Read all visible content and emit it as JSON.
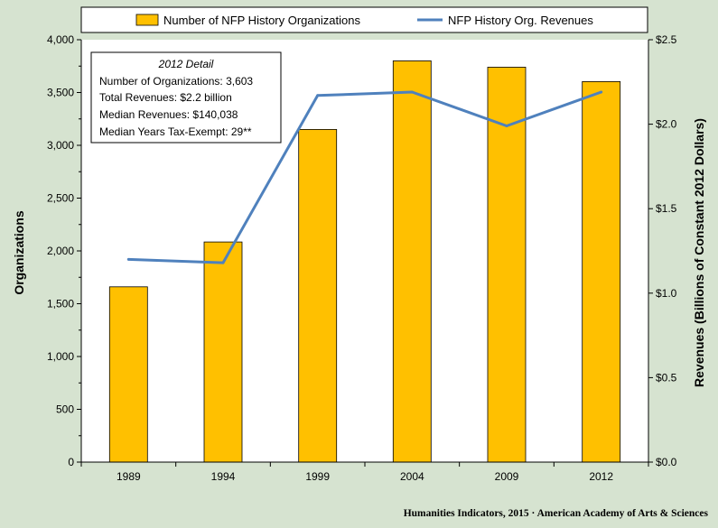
{
  "chart_data": {
    "type": "bar",
    "categories": [
      "1989",
      "1994",
      "1999",
      "2004",
      "2009",
      "2012"
    ],
    "series": [
      {
        "name": "Number of NFP History Organizations",
        "type": "bar",
        "axis": "left",
        "color": "#ffc000",
        "values": [
          1660,
          2085,
          3150,
          3800,
          3740,
          3603
        ]
      },
      {
        "name": "NFP History Org. Revenues",
        "type": "line",
        "axis": "right",
        "color": "#4f81bd",
        "values": [
          1.2,
          1.18,
          2.17,
          2.19,
          1.99,
          2.19
        ]
      }
    ],
    "ylabel": "Organizations",
    "y2label": "Revenues (Billions of Constant 2012 Dollars)",
    "ylim": [
      0,
      4000
    ],
    "y2lim": [
      0,
      2.5
    ],
    "yticks": [
      "0",
      "500",
      "1,000",
      "1,500",
      "2,000",
      "2,500",
      "3,000",
      "3,500",
      "4,000"
    ],
    "y2ticks": [
      "$0.0",
      "$0.5",
      "$1.0",
      "$1.5",
      "$2.0",
      "$2.5"
    ],
    "legend_position": "top",
    "grid": false
  },
  "detail_box": {
    "title": "2012 Detail",
    "lines": [
      "Number of Organizations: 3,603",
      "Total Revenues:  $2.2 billion",
      "Median Revenues:  $140,038",
      "Median Years Tax-Exempt: 29**"
    ]
  },
  "footer": "Humanities  Indicators, 2015 · American Academy of Arts & Sciences",
  "colors": {
    "background": "#d6e3d0",
    "plot_area": "#ffffff",
    "bar": "#ffc000",
    "line": "#4f81bd"
  }
}
